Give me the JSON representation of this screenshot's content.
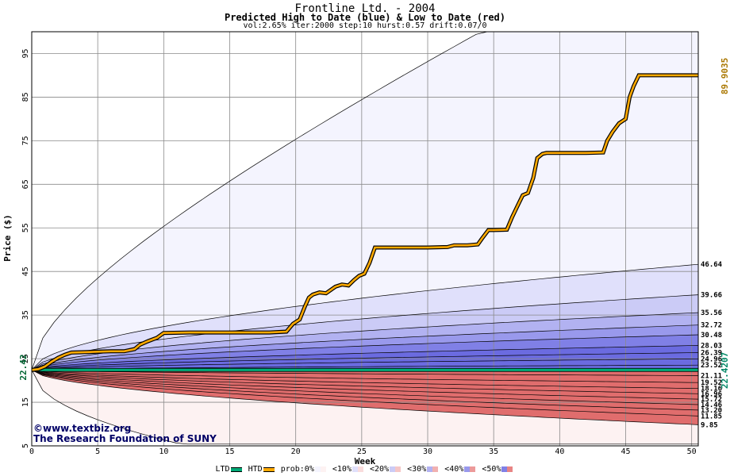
{
  "header": {
    "title": "Frontline Ltd. - 2004",
    "subtitle": "Predicted High to Date (blue) &  Low to Date (red)",
    "params": "vol:2.65% iter:2000 step:10 hurst:0.57 drift:0.07/0"
  },
  "credits": {
    "site": "©www.textbiz.org",
    "org": "The Research Foundation of SUNY"
  },
  "legend": {
    "ltd": "LTD",
    "htd": "HTD",
    "prob_prefix": "prob:0%",
    "items": [
      "<10%",
      "<20%",
      "<30%",
      "<40%",
      "<50%"
    ]
  },
  "colors": {
    "high_band": [
      "#f4f4fe",
      "#e0e0fb",
      "#cbcbf6",
      "#b2b2f1",
      "#9999ec",
      "#8080e6",
      "#6b6be0"
    ],
    "low_band": [
      "#fdf2f2",
      "#f9dcdc",
      "#f5c6c6",
      "#f1b0b0",
      "#ec9a9a",
      "#e88484",
      "#e06d6d"
    ],
    "ltd": "#00aa77",
    "htd": "#ffaa00"
  },
  "chart_data": {
    "type": "area",
    "ylabel": "Price ($)",
    "xlabel": "Week",
    "xlim": [
      0,
      50.5
    ],
    "ylim": [
      5,
      100
    ],
    "xticks": [
      "0",
      "5",
      "10",
      "15",
      "20",
      "25",
      "30",
      "35",
      "40",
      "45",
      "50"
    ],
    "yticks": [
      "5",
      "15",
      "25",
      "35",
      "45",
      "55",
      "65",
      "75",
      "85",
      "95"
    ],
    "start_price": "22.42",
    "right_labels": {
      "high_final": "89.9035",
      "ltd_final": "22.4207"
    },
    "high_band_levels": [
      "46.64",
      "39.66",
      "35.56",
      "32.72",
      "30.48",
      "28.03",
      "26.39",
      "24.96",
      "23.52"
    ],
    "high_band_values": [
      46.64,
      39.66,
      35.56,
      32.72,
      30.48,
      28.03,
      26.39,
      24.96,
      23.52
    ],
    "low_band_levels": [
      "21.11",
      "19.52",
      "18.16",
      "16.96",
      "15.72",
      "14.46",
      "13.20",
      "11.85",
      "9.85"
    ],
    "low_band_values": [
      21.11,
      19.52,
      18.16,
      16.96,
      15.72,
      14.46,
      13.2,
      11.85,
      9.85
    ],
    "max_envelope_end": 100,
    "min_envelope_end": 5.4,
    "htd_series": {
      "name": "HTD",
      "x": [
        0,
        0.5,
        1,
        1.5,
        2,
        2.5,
        3,
        4,
        5,
        6,
        7,
        7.8,
        8.2,
        8.8,
        9.5,
        10,
        12,
        15,
        18,
        19.3,
        19.8,
        20.3,
        20.7,
        21,
        21.3,
        21.8,
        22.3,
        23,
        23.5,
        24,
        24.4,
        24.8,
        25.2,
        25.6,
        26,
        27,
        30,
        31.5,
        32,
        33,
        33.8,
        34.1,
        34.6,
        35,
        36,
        36.4,
        36.8,
        37.2,
        37.6,
        38,
        38.3,
        38.7,
        39,
        40,
        42,
        43.3,
        43.6,
        44,
        44.5,
        45,
        45.3,
        45.6,
        46,
        47,
        50.5
      ],
      "y": [
        22.42,
        22.6,
        23.2,
        24.3,
        25.2,
        25.9,
        26.4,
        26.5,
        26.6,
        26.7,
        26.7,
        27.2,
        28.2,
        29.0,
        29.8,
        30.9,
        31.0,
        31.0,
        31.0,
        31.2,
        33.0,
        34.0,
        37.0,
        39.0,
        39.7,
        40.2,
        40.0,
        41.5,
        42.0,
        41.8,
        43.0,
        44.0,
        44.5,
        47.0,
        50.5,
        50.5,
        50.5,
        50.6,
        51.0,
        51.0,
        51.2,
        52.5,
        54.5,
        54.5,
        54.6,
        57.5,
        60.0,
        62.5,
        63.0,
        66.5,
        71.0,
        72.0,
        72.2,
        72.2,
        72.2,
        72.3,
        75.0,
        77.0,
        79.0,
        80.0,
        85.0,
        87.5,
        90.0,
        90.0,
        90.0
      ]
    },
    "ltd_series": {
      "name": "LTD",
      "y": 22.42
    }
  }
}
